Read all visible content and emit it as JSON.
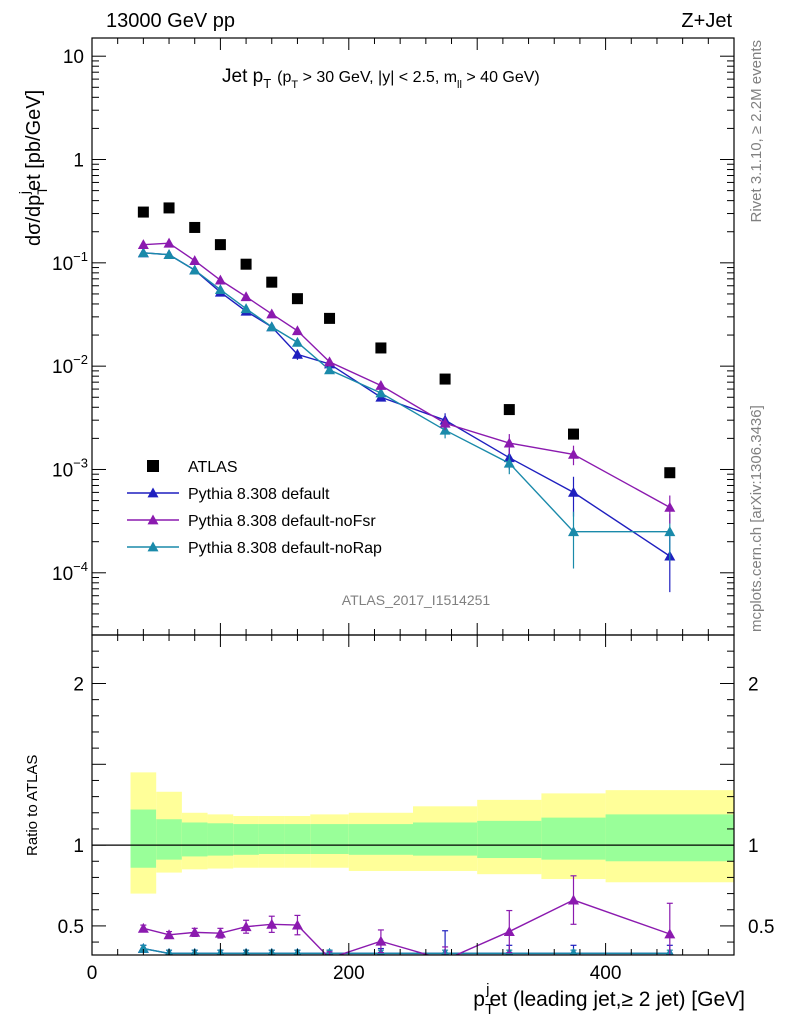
{
  "header": {
    "left": "13000 GeV pp",
    "right": "Z+Jet"
  },
  "side_text": {
    "rivet": "Rivet 3.1.10, ≥ 2.2M events",
    "mcplots": "mcplots.cern.ch [arXiv:1306.3436]"
  },
  "watermark": "ATLAS_2017_I1514251",
  "chart_data": {
    "type": "scatter",
    "title": "Jet p_T (p_T > 30 GeV, |y| < 2.5, m_ll > 40 GeV)",
    "title_parts": {
      "main": "Jet p",
      "main_sub": "T",
      "paren_open": "(p",
      "paren_sub": "T",
      "cut_pt": " > 30 GeV, |y| < 2.5, m",
      "mll_sub": "ll",
      "cut_m": " > 40 GeV)"
    },
    "ylabel": "dσ/dp_T^j et [pb/GeV]",
    "ylabel_parts": {
      "a": "dσ/dp",
      "sub": "T",
      "sup": "j",
      "b": "et [pb/GeV]"
    },
    "xlabel": "p_T^j et (leading jet,≥ 2 jet) [GeV]",
    "xlabel_parts": {
      "a": "p",
      "sub": "T",
      "sup": "j",
      "b": "et (leading jet,≥ 2 jet) [GeV]"
    },
    "ratio_ylabel": "Ratio to ATLAS",
    "xlim": [
      0,
      500
    ],
    "ylim": [
      2.5e-05,
      15
    ],
    "yscale": "log",
    "ratio_ylim": [
      0.32,
      2.3
    ],
    "x_ticks": [
      0,
      200,
      400
    ],
    "x_tick_labels": [
      "0",
      "200",
      "400"
    ],
    "y_ticks": [
      {
        "value": 10,
        "base": "10",
        "exp": ""
      },
      {
        "value": 1,
        "base": "1",
        "exp": ""
      },
      {
        "value": 0.1,
        "base": "10",
        "exp": "−1"
      },
      {
        "value": 0.01,
        "base": "10",
        "exp": "−2"
      },
      {
        "value": 0.001,
        "base": "10",
        "exp": "−3"
      },
      {
        "value": 0.0001,
        "base": "10",
        "exp": "−4"
      }
    ],
    "ratio_ticks": [
      {
        "value": 2,
        "label": "2"
      },
      {
        "value": 1,
        "label": "1"
      },
      {
        "value": 0.5,
        "label": "0.5"
      }
    ],
    "legend_position": "middle-left",
    "bins": [
      {
        "x": 40,
        "lo": 30,
        "hi": 50
      },
      {
        "x": 60,
        "lo": 50,
        "hi": 70
      },
      {
        "x": 80,
        "lo": 70,
        "hi": 90
      },
      {
        "x": 100,
        "lo": 90,
        "hi": 110
      },
      {
        "x": 120,
        "lo": 110,
        "hi": 130
      },
      {
        "x": 140,
        "lo": 130,
        "hi": 150
      },
      {
        "x": 160,
        "lo": 150,
        "hi": 170
      },
      {
        "x": 185,
        "lo": 170,
        "hi": 200
      },
      {
        "x": 225,
        "lo": 200,
        "hi": 250
      },
      {
        "x": 275,
        "lo": 250,
        "hi": 300
      },
      {
        "x": 325,
        "lo": 300,
        "hi": 350
      },
      {
        "x": 375,
        "lo": 350,
        "hi": 400
      },
      {
        "x": 450,
        "lo": 400,
        "hi": 500
      }
    ],
    "uncertainty_bands": {
      "inner_lo": [
        0.86,
        0.91,
        0.93,
        0.935,
        0.94,
        0.945,
        0.945,
        0.945,
        0.94,
        0.935,
        0.92,
        0.91,
        0.9
      ],
      "inner_hi": [
        1.22,
        1.16,
        1.14,
        1.135,
        1.13,
        1.13,
        1.13,
        1.13,
        1.13,
        1.14,
        1.15,
        1.17,
        1.19
      ],
      "outer_lo": [
        0.7,
        0.83,
        0.85,
        0.855,
        0.86,
        0.86,
        0.86,
        0.86,
        0.84,
        0.84,
        0.82,
        0.79,
        0.77
      ],
      "outer_hi": [
        1.45,
        1.33,
        1.2,
        1.19,
        1.18,
        1.18,
        1.18,
        1.19,
        1.2,
        1.24,
        1.28,
        1.32,
        1.34
      ]
    },
    "series": [
      {
        "name": "ATLAS",
        "marker": "square",
        "color": "#000000",
        "values": [
          0.31,
          0.34,
          0.22,
          0.15,
          0.097,
          0.065,
          0.045,
          0.029,
          0.015,
          0.0075,
          0.0038,
          0.0022,
          0.00093
        ]
      },
      {
        "name": "Pythia 8.308 default",
        "marker": "triangle",
        "color": "#1f1fbf",
        "values": [
          0.125,
          0.12,
          0.085,
          0.052,
          0.034,
          0.024,
          0.013,
          0.0105,
          0.005,
          0.003,
          0.0013,
          0.0006,
          0.000145
        ],
        "errors": [
          0.004,
          0.004,
          0.003,
          0.002,
          0.0015,
          0.0012,
          0.0015,
          0.0009,
          0.0004,
          0.0005,
          0.0003,
          0.00025,
          8e-05
        ],
        "ratio": [
          0.36,
          0.33,
          0.33,
          0.33,
          0.33,
          0.33,
          0.33,
          0.33,
          0.33,
          0.33,
          0.33,
          0.33,
          0.33
        ],
        "ratio_errors": [
          0.02,
          0.02,
          0.02,
          0.02,
          0.02,
          0.02,
          0.02,
          0.02,
          0.03,
          0.14,
          0.05,
          0.05,
          0.05
        ]
      },
      {
        "name": "Pythia 8.308 default-noFsr",
        "marker": "triangle",
        "color": "#8b1aaf",
        "values": [
          0.15,
          0.155,
          0.105,
          0.068,
          0.047,
          0.032,
          0.022,
          0.011,
          0.0065,
          0.0028,
          0.0018,
          0.0014,
          0.00043
        ],
        "errors": [
          0.005,
          0.005,
          0.004,
          0.003,
          0.002,
          0.0018,
          0.0014,
          0.001,
          0.0006,
          0.0004,
          0.0004,
          0.0003,
          0.00013
        ],
        "ratio": [
          0.485,
          0.445,
          0.46,
          0.455,
          0.495,
          0.51,
          0.505,
          0.3,
          0.405,
          0.29,
          0.465,
          0.66,
          0.45
        ],
        "ratio_errors": [
          0.02,
          0.02,
          0.025,
          0.03,
          0.04,
          0.05,
          0.06,
          0.04,
          0.07,
          0.08,
          0.13,
          0.15,
          0.19
        ]
      },
      {
        "name": "Pythia 8.308 default-noRap",
        "marker": "triangle",
        "color": "#1a8aaa",
        "values": [
          0.125,
          0.12,
          0.085,
          0.055,
          0.036,
          0.024,
          0.017,
          0.0092,
          0.0055,
          0.0024,
          0.00115,
          0.00025,
          0.00025
        ],
        "errors": [
          0.004,
          0.004,
          0.003,
          0.002,
          0.0015,
          0.0012,
          0.0012,
          0.0008,
          0.0004,
          0.0004,
          0.00025,
          0.00014,
          0.00012
        ],
        "ratio": [
          0.36,
          0.33,
          0.33,
          0.33,
          0.33,
          0.33,
          0.33,
          0.33,
          0.33,
          0.33,
          0.33,
          0.33,
          0.33
        ],
        "ratio_errors": [
          0.02,
          0.02,
          0.02,
          0.02,
          0.02,
          0.02,
          0.02,
          0.02,
          0.02,
          0.02,
          0.02,
          0.02,
          0.02
        ]
      }
    ]
  }
}
